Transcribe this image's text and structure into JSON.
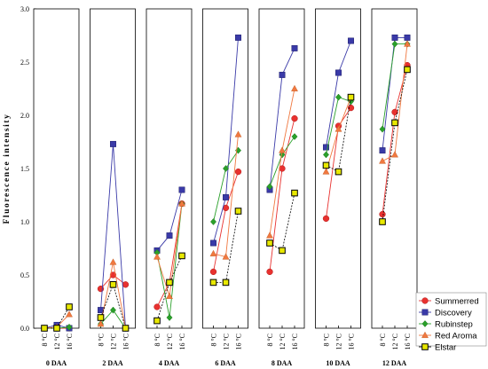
{
  "chart_data": {
    "type": "line",
    "ylabel": "Fluorescence intensity",
    "ylim": [
      0,
      3.0
    ],
    "yticks": [
      "0.0",
      "0.5",
      "1.0",
      "1.5",
      "2.0",
      "2.5",
      "3.0"
    ],
    "categories": [
      "8 °C",
      "12 °C",
      "16 °C"
    ],
    "grid": false,
    "legend_position": "bottom-right",
    "series_meta": [
      {
        "name": "Summerred",
        "color": "#e8312f",
        "marker": "circle"
      },
      {
        "name": "Discovery",
        "color": "#3a3aa8",
        "marker": "square"
      },
      {
        "name": "Rubinstep",
        "color": "#2aa02a",
        "marker": "diamond"
      },
      {
        "name": "Red Aroma",
        "color": "#f07840",
        "marker": "triangle"
      },
      {
        "name": "Elstar",
        "color": "#e8e800",
        "marker": "square-outline"
      }
    ],
    "panels": [
      {
        "title": "0 DAA",
        "series": [
          {
            "name": "Summerred",
            "values": [
              0.0,
              0.0,
              0.0
            ]
          },
          {
            "name": "Discovery",
            "values": [
              0.0,
              0.03,
              0.0
            ]
          },
          {
            "name": "Rubinstep",
            "values": [
              0.0,
              0.0,
              0.01
            ]
          },
          {
            "name": "Red Aroma",
            "values": [
              0.0,
              0.01,
              0.13
            ]
          },
          {
            "name": "Elstar",
            "values": [
              0.0,
              0.0,
              0.2
            ]
          }
        ]
      },
      {
        "title": "2 DAA",
        "series": [
          {
            "name": "Summerred",
            "values": [
              0.37,
              0.5,
              0.41
            ]
          },
          {
            "name": "Discovery",
            "values": [
              0.17,
              1.73,
              0.0
            ]
          },
          {
            "name": "Rubinstep",
            "values": [
              0.04,
              0.17,
              0.0
            ]
          },
          {
            "name": "Red Aroma",
            "values": [
              0.04,
              0.62,
              0.0
            ]
          },
          {
            "name": "Elstar",
            "values": [
              0.1,
              0.41,
              0.0
            ]
          }
        ]
      },
      {
        "title": "4 DAA",
        "series": [
          {
            "name": "Summerred",
            "values": [
              0.2,
              0.43,
              1.17
            ]
          },
          {
            "name": "Discovery",
            "values": [
              0.73,
              0.87,
              1.3
            ]
          },
          {
            "name": "Rubinstep",
            "values": [
              0.71,
              0.1,
              1.17
            ]
          },
          {
            "name": "Red Aroma",
            "values": [
              0.67,
              0.3,
              1.17
            ]
          },
          {
            "name": "Elstar",
            "values": [
              0.07,
              0.43,
              0.68
            ]
          }
        ]
      },
      {
        "title": "6 DAA",
        "series": [
          {
            "name": "Summerred",
            "values": [
              0.53,
              1.13,
              1.47
            ]
          },
          {
            "name": "Discovery",
            "values": [
              0.8,
              1.23,
              2.73
            ]
          },
          {
            "name": "Rubinstep",
            "values": [
              1.0,
              1.5,
              1.67
            ]
          },
          {
            "name": "Red Aroma",
            "values": [
              0.7,
              0.67,
              1.82
            ]
          },
          {
            "name": "Elstar",
            "values": [
              0.43,
              0.43,
              1.1
            ]
          }
        ]
      },
      {
        "title": "8 DAA",
        "series": [
          {
            "name": "Summerred",
            "values": [
              0.53,
              1.5,
              1.97
            ]
          },
          {
            "name": "Discovery",
            "values": [
              1.3,
              2.38,
              2.63
            ]
          },
          {
            "name": "Rubinstep",
            "values": [
              1.33,
              1.63,
              1.8
            ]
          },
          {
            "name": "Red Aroma",
            "values": [
              0.87,
              1.67,
              2.25
            ]
          },
          {
            "name": "Elstar",
            "values": [
              0.8,
              0.73,
              1.27
            ]
          }
        ]
      },
      {
        "title": "10 DAA",
        "series": [
          {
            "name": "Summerred",
            "values": [
              1.03,
              1.9,
              2.07
            ]
          },
          {
            "name": "Discovery",
            "values": [
              1.7,
              2.4,
              2.7
            ]
          },
          {
            "name": "Rubinstep",
            "values": [
              1.63,
              2.17,
              2.13
            ]
          },
          {
            "name": "Red Aroma",
            "values": [
              1.47,
              1.87,
              2.17
            ]
          },
          {
            "name": "Elstar",
            "values": [
              1.53,
              1.47,
              2.17
            ]
          }
        ]
      },
      {
        "title": "12 DAA",
        "series": [
          {
            "name": "Summerred",
            "values": [
              1.07,
              2.03,
              2.47
            ]
          },
          {
            "name": "Discovery",
            "values": [
              1.67,
              2.73,
              2.73
            ]
          },
          {
            "name": "Rubinstep",
            "values": [
              1.87,
              2.67,
              2.67
            ]
          },
          {
            "name": "Red Aroma",
            "values": [
              1.57,
              1.63,
              2.67
            ]
          },
          {
            "name": "Elstar",
            "values": [
              1.0,
              1.93,
              2.43
            ]
          }
        ]
      }
    ]
  }
}
